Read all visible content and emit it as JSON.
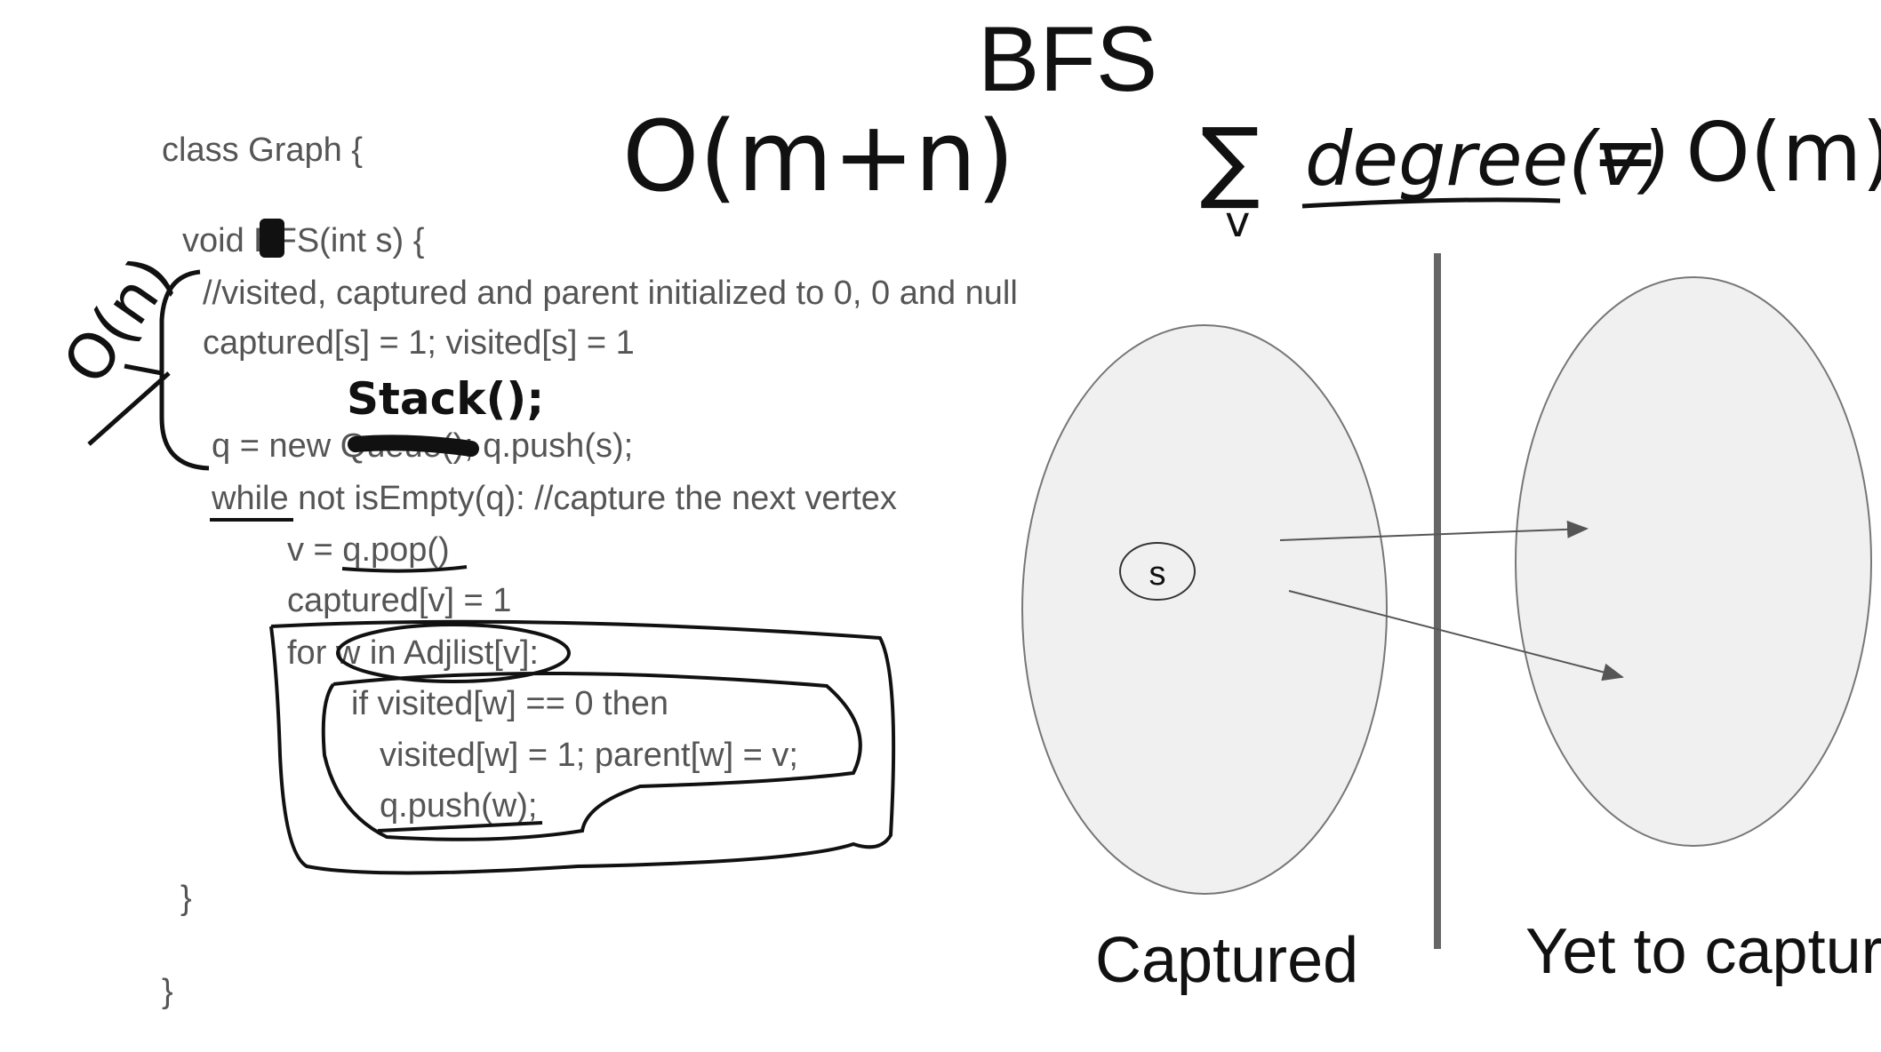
{
  "slide": {
    "title": "BFS"
  },
  "code": {
    "lines": [
      "class Graph {",
      "void BFS(int s) {",
      "//visited, captured and parent initialized to 0, 0 and null",
      "captured[s] = 1; visited[s] = 1",
      "q = new Queue(); q.push(s);",
      "while not isEmpty(q): //capture the next vertex",
      "v = q.pop()",
      "captured[v] = 1",
      "for w in Adjlist[v]:",
      "if visited[w] == 0 then",
      "visited[w] = 1; parent[w] = v;",
      "q.push(w);",
      "}",
      "}"
    ]
  },
  "annotations": {
    "complexity_total": "O(m+n)",
    "degree_sum_symbol": "∑",
    "degree_sum_index": "v",
    "degree_sum_term": "degree(v)",
    "degree_sum_result": "= O(m)",
    "init_cost": "O(n)",
    "stack_replacement": "Stack();"
  },
  "diagram": {
    "node_label": "s",
    "left_set_label": "Captured",
    "right_set_label": "Yet to capture"
  },
  "colors": {
    "set_fill": "#f0f0f0",
    "set_stroke": "#777777",
    "divider": "#666666",
    "ink": "#111111",
    "code_text": "#555555"
  }
}
